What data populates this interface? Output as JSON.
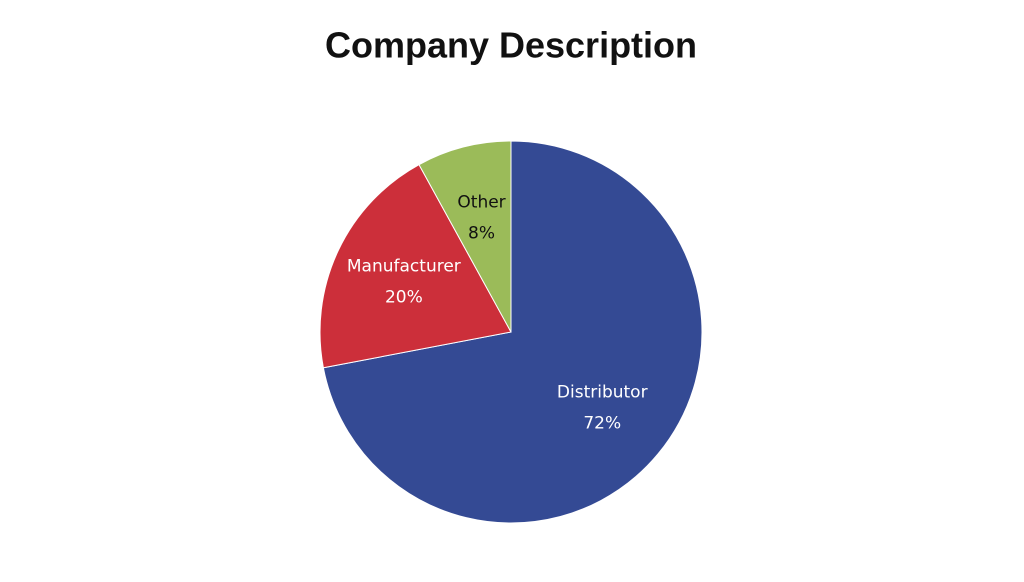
{
  "chart_data": {
    "type": "pie",
    "title": "Company Description",
    "categories": [
      "Distributor",
      "Manufacturer",
      "Other"
    ],
    "values": [
      72,
      20,
      8
    ],
    "value_labels": [
      "72%",
      "20%",
      "8%"
    ],
    "colors": [
      "#344a94",
      "#cc2f3a",
      "#9bbb59"
    ]
  }
}
